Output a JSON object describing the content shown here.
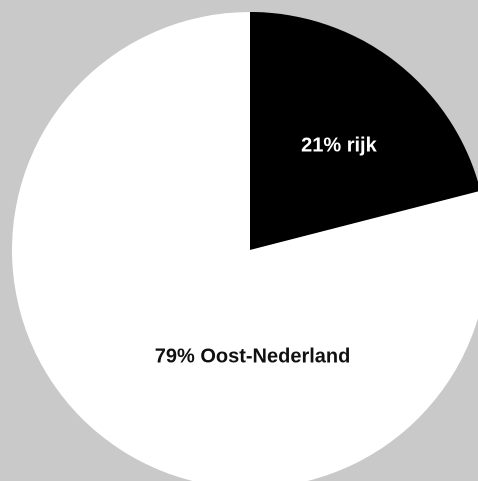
{
  "chart_data": {
    "type": "pie",
    "slices": [
      {
        "label": "rijk",
        "value": 21,
        "display": "21% rijk",
        "color": "#000000",
        "text_color": "#ffffff"
      },
      {
        "label": "Oost-Nederland",
        "value": 79,
        "display": "79% Oost-Nederland",
        "color": "#ffffff",
        "text_color": "#111111"
      }
    ],
    "start_angle_deg": 0,
    "direction": "clockwise",
    "background": "#c9c9c9"
  }
}
